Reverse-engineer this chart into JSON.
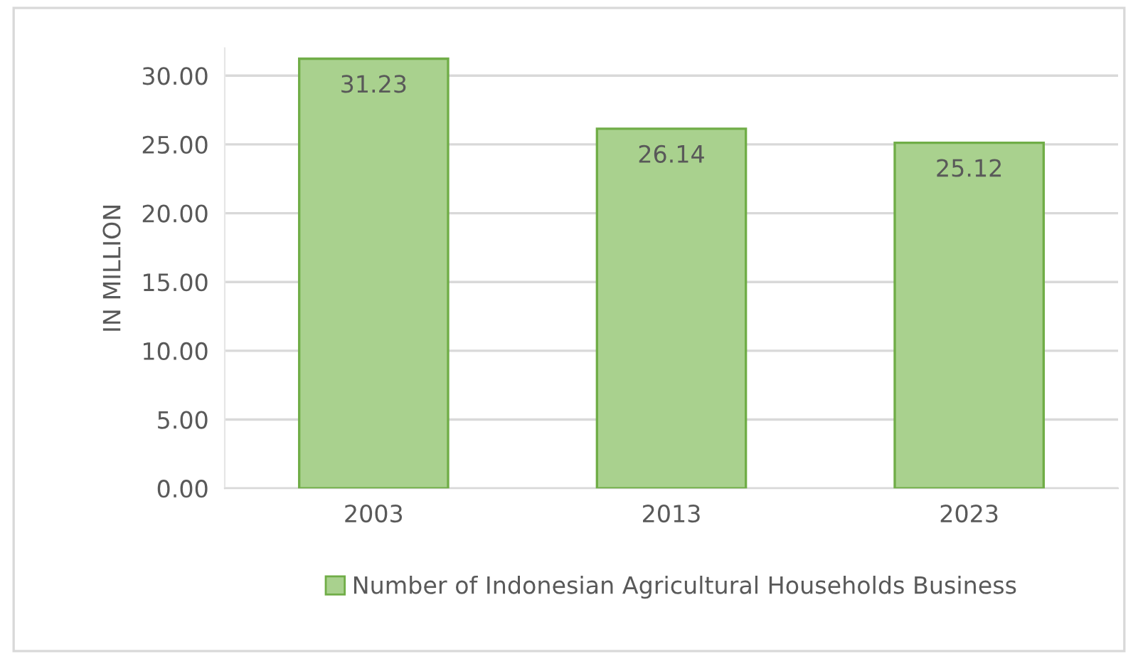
{
  "chart_data": {
    "type": "bar",
    "ylabel": "IN MILLION",
    "categories": [
      "2003",
      "2013",
      "2023"
    ],
    "series": [
      {
        "name": "Number of Indonesian Agricultural Households Business",
        "color": "#a9d18e",
        "values": [
          31.23,
          26.14,
          25.12
        ]
      }
    ],
    "ylim": [
      0,
      32
    ],
    "yticks": [
      {
        "value": 0,
        "label": "0.00"
      },
      {
        "value": 5,
        "label": "5.00"
      },
      {
        "value": 10,
        "label": "10.00"
      },
      {
        "value": 15,
        "label": "15.00"
      },
      {
        "value": 20,
        "label": "20.00"
      },
      {
        "value": 25,
        "label": "25.00"
      },
      {
        "value": 30,
        "label": "30.00"
      }
    ],
    "grid": "y",
    "legend": "bottom",
    "data_labels": true
  }
}
